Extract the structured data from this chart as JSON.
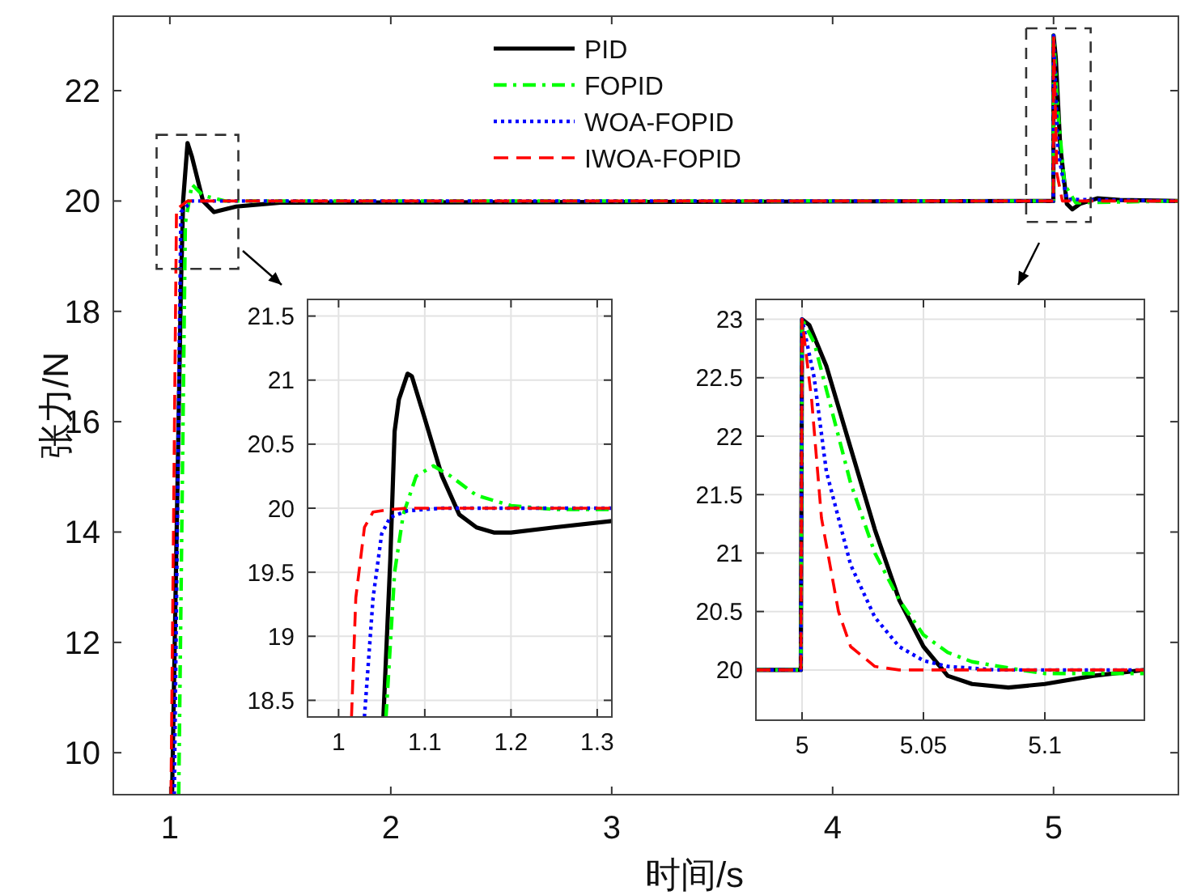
{
  "chart_data": [
    {
      "type": "line",
      "xlabel": "时间/s",
      "ylabel": "张力/N",
      "xlim": [
        0.744,
        5.565
      ],
      "ylim": [
        9.24,
        23.35
      ],
      "xticks": [
        1,
        2,
        3,
        4,
        5
      ],
      "yticks": [
        10,
        12,
        14,
        16,
        18,
        20,
        22
      ],
      "grid": false,
      "legend": "top",
      "series": [
        {
          "name": "PID",
          "color": "#000000",
          "line_style": "solid",
          "x": [
            1.01,
            1.05,
            1.06,
            1.08,
            1.1,
            1.15,
            1.2,
            1.3,
            1.5,
            4.999,
            5.0,
            5.01,
            5.03,
            5.06,
            5.085,
            5.12,
            5.2,
            5.3,
            5.565
          ],
          "values": [
            9.24,
            18.4,
            20,
            21.05,
            20.8,
            20,
            19.8,
            19.9,
            19.97,
            20,
            23,
            22.6,
            21,
            19.95,
            19.85,
            19.95,
            20.05,
            20.02,
            20
          ]
        },
        {
          "name": "FOPID",
          "color": "#00ff00",
          "line_style": "dashdot",
          "x": [
            1.04,
            1.07,
            1.1,
            1.15,
            1.25,
            4.999,
            5.0,
            5.02,
            5.05,
            5.1,
            5.565
          ],
          "values": [
            9.24,
            19.6,
            20.3,
            20.1,
            20,
            20,
            23,
            21.6,
            20.3,
            19.97,
            20
          ]
        },
        {
          "name": "WOA-FOPID",
          "color": "#0000ff",
          "line_style": "dotted",
          "x": [
            1.02,
            1.05,
            1.1,
            4.999,
            5.0,
            5.02,
            5.06,
            5.565
          ],
          "values": [
            9.24,
            19.8,
            20,
            20,
            23,
            20.9,
            20.03,
            20
          ]
        },
        {
          "name": "IWOA-FOPID",
          "color": "#ff0000",
          "line_style": "dashed",
          "x": [
            1.005,
            1.03,
            1.08,
            4.999,
            5.0,
            5.015,
            5.04,
            5.565
          ],
          "values": [
            9.24,
            19.85,
            20,
            20,
            23,
            20.5,
            20,
            20
          ]
        }
      ]
    },
    {
      "type": "line",
      "xlim": [
        0.964,
        1.317
      ],
      "ylim": [
        18.37,
        21.63
      ],
      "xticks": [
        1,
        1.1,
        1.2,
        1.3
      ],
      "yticks": [
        18.5,
        19,
        19.5,
        20,
        20.5,
        21,
        21.5
      ],
      "grid": true,
      "series": [
        {
          "color": "#000000",
          "line_style": "solid",
          "x": [
            1.052,
            1.06,
            1.065,
            1.07,
            1.08,
            1.085,
            1.1,
            1.12,
            1.14,
            1.16,
            1.18,
            1.2,
            1.25,
            1.317
          ],
          "values": [
            18.37,
            19.6,
            20.6,
            20.85,
            21.05,
            21.03,
            20.7,
            20.25,
            19.95,
            19.85,
            19.81,
            19.81,
            19.85,
            19.9
          ]
        },
        {
          "color": "#00ff00",
          "line_style": "dashdot",
          "x": [
            1.055,
            1.065,
            1.075,
            1.09,
            1.11,
            1.13,
            1.16,
            1.2,
            1.25,
            1.317
          ],
          "values": [
            18.37,
            19.5,
            19.95,
            20.25,
            20.33,
            20.25,
            20.1,
            20.02,
            19.99,
            19.99
          ]
        },
        {
          "color": "#0000ff",
          "line_style": "dotted",
          "x": [
            1.03,
            1.04,
            1.05,
            1.06,
            1.08,
            1.12,
            1.317
          ],
          "values": [
            18.37,
            19.3,
            19.8,
            19.93,
            19.98,
            20,
            20
          ]
        },
        {
          "color": "#ff0000",
          "line_style": "dashed",
          "x": [
            1.015,
            1.02,
            1.03,
            1.04,
            1.06,
            1.08,
            1.317
          ],
          "values": [
            18.37,
            19.3,
            19.85,
            19.97,
            19.99,
            20,
            20
          ]
        }
      ]
    },
    {
      "type": "line",
      "xlim": [
        4.981,
        5.141
      ],
      "ylim": [
        19.57,
        23.17
      ],
      "xticks": [
        5,
        5.05,
        5.1
      ],
      "yticks": [
        20,
        20.5,
        21,
        21.5,
        22,
        22.5,
        23
      ],
      "grid": true,
      "series": [
        {
          "color": "#000000",
          "line_style": "solid",
          "x": [
            4.981,
            4.9995,
            5.0,
            5.003,
            5.01,
            5.02,
            5.03,
            5.04,
            5.05,
            5.06,
            5.07,
            5.085,
            5.1,
            5.12,
            5.141
          ],
          "values": [
            20,
            20,
            23,
            22.95,
            22.6,
            21.9,
            21.2,
            20.6,
            20.2,
            19.95,
            19.88,
            19.85,
            19.88,
            19.95,
            20.0
          ]
        },
        {
          "color": "#00ff00",
          "line_style": "dashdot",
          "x": [
            4.981,
            4.9995,
            5.0,
            5.005,
            5.01,
            5.02,
            5.03,
            5.04,
            5.05,
            5.06,
            5.07,
            5.09,
            5.1,
            5.141
          ],
          "values": [
            20,
            20,
            23,
            22.8,
            22.4,
            21.6,
            21.0,
            20.6,
            20.3,
            20.15,
            20.07,
            20.0,
            19.97,
            19.97
          ]
        },
        {
          "color": "#0000ff",
          "line_style": "dotted",
          "x": [
            4.981,
            4.9995,
            5.0,
            5.005,
            5.01,
            5.02,
            5.03,
            5.04,
            5.05,
            5.06,
            5.08,
            5.141
          ],
          "values": [
            20,
            20,
            23,
            22.5,
            21.7,
            20.9,
            20.45,
            20.2,
            20.08,
            20.03,
            20,
            20
          ]
        },
        {
          "color": "#ff0000",
          "line_style": "dashed",
          "x": [
            4.981,
            4.9995,
            5.0,
            5.004,
            5.008,
            5.015,
            5.02,
            5.03,
            5.04,
            5.141
          ],
          "values": [
            20,
            20,
            23,
            22.3,
            21.3,
            20.5,
            20.2,
            20.03,
            20,
            20
          ]
        }
      ]
    }
  ]
}
